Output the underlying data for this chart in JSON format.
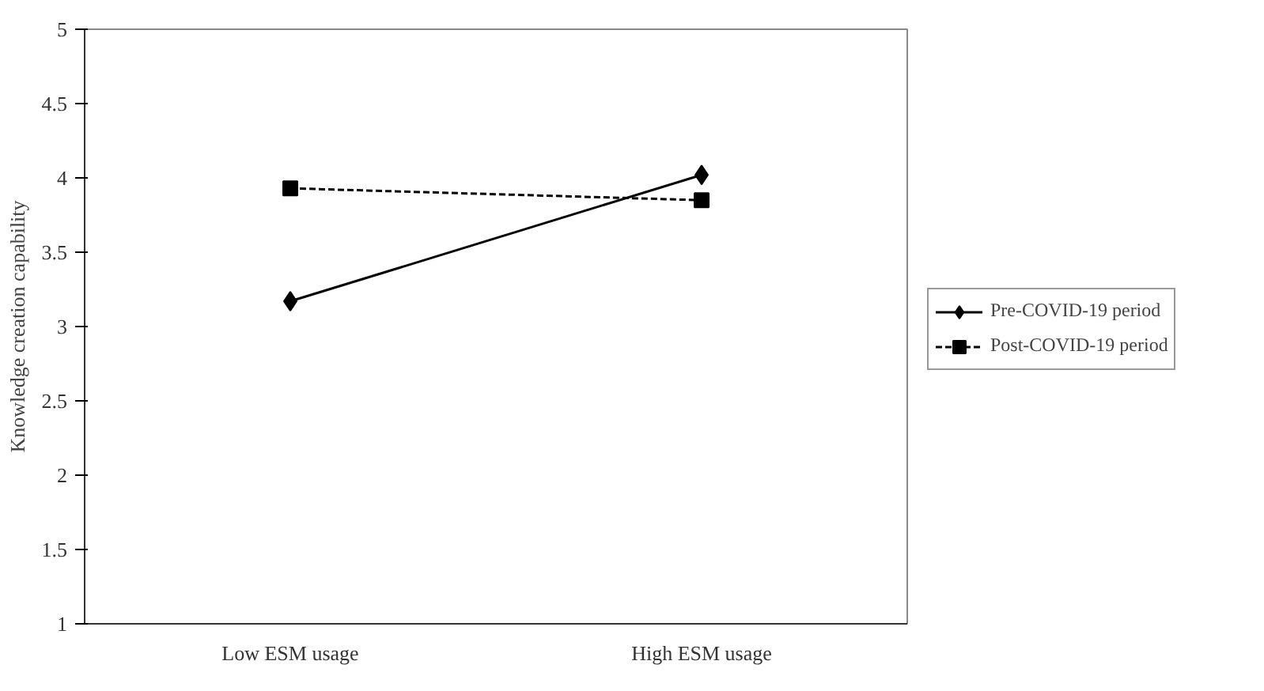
{
  "chart_data": {
    "type": "line",
    "ylabel": "Knowledge creation capability",
    "categories": [
      "Low ESM usage",
      "High ESM usage"
    ],
    "ylim": [
      1,
      5
    ],
    "yticks": [
      1,
      1.5,
      2,
      2.5,
      3,
      3.5,
      4,
      4.5,
      5
    ],
    "grid": false,
    "legend": "right",
    "series": [
      {
        "name": "Pre-COVID-19 period",
        "color": "#000000",
        "values": [
          3.17,
          4.02
        ],
        "marker": "diamond",
        "line_style": "solid"
      },
      {
        "name": "Post-COVID-19 period",
        "color": "#000000",
        "values": [
          3.93,
          3.85
        ],
        "marker": "square",
        "line_style": "dashed"
      }
    ]
  }
}
